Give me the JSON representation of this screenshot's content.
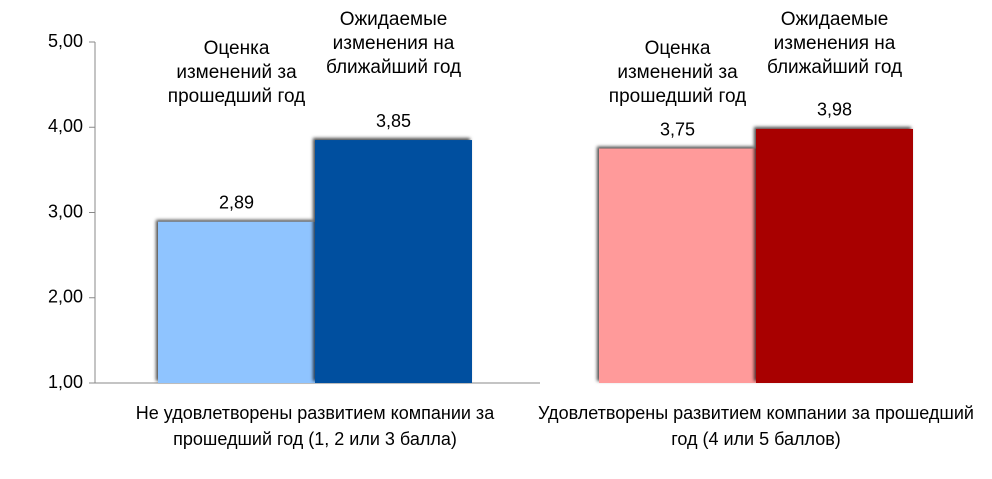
{
  "chart_data": {
    "type": "bar",
    "categories": [
      "Не удовлетворены развитием компании за прошедший год (1, 2 или 3 балла)",
      "Удовлетворены развитием компании за прошедший год (4 или 5 баллов)"
    ],
    "series": [
      {
        "name": "Оценка изменений за прошедший год",
        "colors": [
          "#8fc4ff",
          "#ff9a9a"
        ],
        "values": [
          2.89,
          3.75
        ],
        "value_labels": [
          "2,89",
          "3,75"
        ]
      },
      {
        "name": "Ожидаемые изменения на ближайший год",
        "colors": [
          "#00509f",
          "#a80000"
        ],
        "values": [
          3.85,
          3.98
        ],
        "value_labels": [
          "3,85",
          "3,98"
        ]
      }
    ],
    "ylim": [
      1,
      5
    ],
    "yticks": [
      {
        "value": 1,
        "label": "1,00"
      },
      {
        "value": 2,
        "label": "2,00"
      },
      {
        "value": 3,
        "label": "3,00"
      },
      {
        "value": 4,
        "label": "4,00"
      },
      {
        "value": 5,
        "label": "5,00"
      }
    ]
  }
}
